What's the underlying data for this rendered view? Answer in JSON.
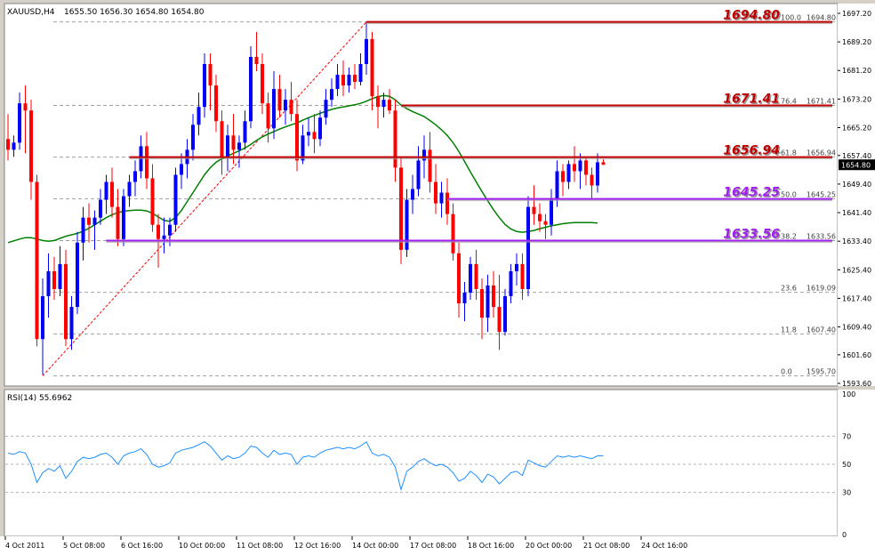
{
  "chart_data": [
    {
      "type": "candlestick",
      "symbol_label": "XAUUSD,H4",
      "ohlc_label": "1655.50 1656.30 1654.80 1654.80",
      "last_price": "1654.80",
      "ylim": [
        1593.6,
        1697.2
      ],
      "y_ticks": [
        "1697.20",
        "1689.20",
        "1681.20",
        "1673.20",
        "1665.20",
        "1657.40",
        "1649.40",
        "1641.40",
        "1633.40",
        "1625.40",
        "1617.40",
        "1609.40",
        "1601.60",
        "1593.60"
      ],
      "x_ticks": [
        {
          "label": "4 Oct 2011",
          "bar": 0
        },
        {
          "label": "5 Oct 08:00",
          "bar": 10
        },
        {
          "label": "6 Oct 16:00",
          "bar": 20
        },
        {
          "label": "10 Oct 00:00",
          "bar": 30
        },
        {
          "label": "11 Oct 08:00",
          "bar": 40
        },
        {
          "label": "12 Oct 16:00",
          "bar": 50
        },
        {
          "label": "14 Oct 00:00",
          "bar": 60
        },
        {
          "label": "17 Oct 08:00",
          "bar": 70
        },
        {
          "label": "18 Oct 16:00",
          "bar": 80
        },
        {
          "label": "20 Oct 00:00",
          "bar": 90
        },
        {
          "label": "21 Oct 08:00",
          "bar": 100
        },
        {
          "label": "24 Oct 16:00",
          "bar": 110
        }
      ],
      "candles": [
        {
          "o": 1662.0,
          "h": 1669.0,
          "l": 1656.0,
          "c": 1659.0
        },
        {
          "o": 1659.0,
          "h": 1663.0,
          "l": 1657.0,
          "c": 1661.0
        },
        {
          "o": 1661.0,
          "h": 1675.0,
          "l": 1659.0,
          "c": 1672.0
        },
        {
          "o": 1672.0,
          "h": 1677.0,
          "l": 1658.0,
          "c": 1670.0
        },
        {
          "o": 1670.0,
          "h": 1673.0,
          "l": 1645.0,
          "c": 1650.0
        },
        {
          "o": 1650.0,
          "h": 1652.0,
          "l": 1604.0,
          "c": 1606.0
        },
        {
          "o": 1606.0,
          "h": 1623.0,
          "l": 1596.0,
          "c": 1618.0
        },
        {
          "o": 1618.0,
          "h": 1630.0,
          "l": 1612.0,
          "c": 1625.0
        },
        {
          "o": 1625.0,
          "h": 1629.0,
          "l": 1617.0,
          "c": 1620.0
        },
        {
          "o": 1620.0,
          "h": 1632.0,
          "l": 1618.0,
          "c": 1627.0
        },
        {
          "o": 1627.0,
          "h": 1631.0,
          "l": 1604.0,
          "c": 1606.0
        },
        {
          "o": 1606.0,
          "h": 1618.0,
          "l": 1603.0,
          "c": 1615.0
        },
        {
          "o": 1615.0,
          "h": 1636.0,
          "l": 1613.0,
          "c": 1633.0
        },
        {
          "o": 1633.0,
          "h": 1643.0,
          "l": 1628.0,
          "c": 1640.0
        },
        {
          "o": 1640.0,
          "h": 1644.0,
          "l": 1633.0,
          "c": 1638.0
        },
        {
          "o": 1638.0,
          "h": 1642.0,
          "l": 1631.0,
          "c": 1640.0
        },
        {
          "o": 1640.0,
          "h": 1648.0,
          "l": 1638.0,
          "c": 1645.0
        },
        {
          "o": 1645.0,
          "h": 1652.0,
          "l": 1641.0,
          "c": 1650.0
        },
        {
          "o": 1650.0,
          "h": 1654.0,
          "l": 1640.0,
          "c": 1643.0
        },
        {
          "o": 1643.0,
          "h": 1648.0,
          "l": 1632.0,
          "c": 1634.0
        },
        {
          "o": 1634.0,
          "h": 1648.0,
          "l": 1632.0,
          "c": 1646.0
        },
        {
          "o": 1646.0,
          "h": 1652.0,
          "l": 1643.0,
          "c": 1650.0
        },
        {
          "o": 1650.0,
          "h": 1656.0,
          "l": 1646.0,
          "c": 1653.0
        },
        {
          "o": 1653.0,
          "h": 1663.0,
          "l": 1651.0,
          "c": 1660.0
        },
        {
          "o": 1660.0,
          "h": 1664.0,
          "l": 1648.0,
          "c": 1651.0
        },
        {
          "o": 1651.0,
          "h": 1655.0,
          "l": 1636.0,
          "c": 1638.0
        },
        {
          "o": 1638.0,
          "h": 1641.0,
          "l": 1626.0,
          "c": 1634.0
        },
        {
          "o": 1634.0,
          "h": 1640.0,
          "l": 1630.0,
          "c": 1635.0
        },
        {
          "o": 1635.0,
          "h": 1640.0,
          "l": 1632.0,
          "c": 1638.0
        },
        {
          "o": 1638.0,
          "h": 1654.0,
          "l": 1636.0,
          "c": 1652.0
        },
        {
          "o": 1652.0,
          "h": 1658.0,
          "l": 1648.0,
          "c": 1655.0
        },
        {
          "o": 1655.0,
          "h": 1662.0,
          "l": 1651.0,
          "c": 1659.0
        },
        {
          "o": 1659.0,
          "h": 1669.0,
          "l": 1656.0,
          "c": 1666.0
        },
        {
          "o": 1666.0,
          "h": 1675.0,
          "l": 1663.0,
          "c": 1671.0
        },
        {
          "o": 1671.0,
          "h": 1686.0,
          "l": 1668.0,
          "c": 1683.0
        },
        {
          "o": 1683.0,
          "h": 1686.0,
          "l": 1670.0,
          "c": 1677.0
        },
        {
          "o": 1677.0,
          "h": 1680.0,
          "l": 1664.0,
          "c": 1667.0
        },
        {
          "o": 1667.0,
          "h": 1670.0,
          "l": 1652.0,
          "c": 1657.0
        },
        {
          "o": 1657.0,
          "h": 1666.0,
          "l": 1653.0,
          "c": 1663.0
        },
        {
          "o": 1663.0,
          "h": 1669.0,
          "l": 1655.0,
          "c": 1659.0
        },
        {
          "o": 1659.0,
          "h": 1663.0,
          "l": 1654.0,
          "c": 1661.0
        },
        {
          "o": 1661.0,
          "h": 1670.0,
          "l": 1659.0,
          "c": 1667.0
        },
        {
          "o": 1667.0,
          "h": 1688.0,
          "l": 1665.0,
          "c": 1685.0
        },
        {
          "o": 1685.0,
          "h": 1692.0,
          "l": 1681.0,
          "c": 1683.0
        },
        {
          "o": 1683.0,
          "h": 1686.0,
          "l": 1669.0,
          "c": 1672.0
        },
        {
          "o": 1672.0,
          "h": 1675.0,
          "l": 1661.0,
          "c": 1665.0
        },
        {
          "o": 1665.0,
          "h": 1681.0,
          "l": 1662.0,
          "c": 1676.0
        },
        {
          "o": 1676.0,
          "h": 1680.0,
          "l": 1668.0,
          "c": 1670.0
        },
        {
          "o": 1670.0,
          "h": 1676.0,
          "l": 1666.0,
          "c": 1673.0
        },
        {
          "o": 1673.0,
          "h": 1678.0,
          "l": 1667.0,
          "c": 1669.0
        },
        {
          "o": 1669.0,
          "h": 1673.0,
          "l": 1653.0,
          "c": 1656.0
        },
        {
          "o": 1656.0,
          "h": 1666.0,
          "l": 1655.0,
          "c": 1663.0
        },
        {
          "o": 1663.0,
          "h": 1668.0,
          "l": 1660.0,
          "c": 1664.0
        },
        {
          "o": 1664.0,
          "h": 1669.0,
          "l": 1658.0,
          "c": 1662.0
        },
        {
          "o": 1662.0,
          "h": 1670.0,
          "l": 1660.0,
          "c": 1668.0
        },
        {
          "o": 1668.0,
          "h": 1676.0,
          "l": 1666.0,
          "c": 1673.0
        },
        {
          "o": 1673.0,
          "h": 1679.0,
          "l": 1671.0,
          "c": 1676.0
        },
        {
          "o": 1676.0,
          "h": 1683.0,
          "l": 1674.0,
          "c": 1680.0
        },
        {
          "o": 1680.0,
          "h": 1684.0,
          "l": 1674.0,
          "c": 1677.0
        },
        {
          "o": 1677.0,
          "h": 1682.0,
          "l": 1675.0,
          "c": 1680.0
        },
        {
          "o": 1680.0,
          "h": 1683.0,
          "l": 1676.0,
          "c": 1678.0
        },
        {
          "o": 1678.0,
          "h": 1686.0,
          "l": 1677.0,
          "c": 1683.0
        },
        {
          "o": 1683.0,
          "h": 1694.8,
          "l": 1680.0,
          "c": 1690.0
        },
        {
          "o": 1690.0,
          "h": 1692.0,
          "l": 1670.0,
          "c": 1674.0
        },
        {
          "o": 1674.0,
          "h": 1677.0,
          "l": 1665.0,
          "c": 1671.0
        },
        {
          "o": 1671.0,
          "h": 1675.0,
          "l": 1668.0,
          "c": 1673.0
        },
        {
          "o": 1673.0,
          "h": 1676.0,
          "l": 1669.0,
          "c": 1670.0
        },
        {
          "o": 1670.0,
          "h": 1673.0,
          "l": 1650.0,
          "c": 1654.0
        },
        {
          "o": 1654.0,
          "h": 1657.0,
          "l": 1627.0,
          "c": 1631.0
        },
        {
          "o": 1631.0,
          "h": 1648.0,
          "l": 1629.0,
          "c": 1645.0
        },
        {
          "o": 1645.0,
          "h": 1652.0,
          "l": 1641.0,
          "c": 1648.0
        },
        {
          "o": 1648.0,
          "h": 1660.0,
          "l": 1646.0,
          "c": 1656.0
        },
        {
          "o": 1656.0,
          "h": 1663.0,
          "l": 1651.0,
          "c": 1659.0
        },
        {
          "o": 1659.0,
          "h": 1664.0,
          "l": 1647.0,
          "c": 1650.0
        },
        {
          "o": 1650.0,
          "h": 1655.0,
          "l": 1641.0,
          "c": 1644.0
        },
        {
          "o": 1644.0,
          "h": 1650.0,
          "l": 1640.0,
          "c": 1647.0
        },
        {
          "o": 1647.0,
          "h": 1651.0,
          "l": 1638.0,
          "c": 1641.0
        },
        {
          "o": 1641.0,
          "h": 1644.0,
          "l": 1628.0,
          "c": 1630.0
        },
        {
          "o": 1630.0,
          "h": 1633.0,
          "l": 1612.0,
          "c": 1616.0
        },
        {
          "o": 1616.0,
          "h": 1622.0,
          "l": 1611.0,
          "c": 1619.0
        },
        {
          "o": 1619.0,
          "h": 1629.0,
          "l": 1617.0,
          "c": 1627.0
        },
        {
          "o": 1627.0,
          "h": 1631.0,
          "l": 1617.0,
          "c": 1620.0
        },
        {
          "o": 1620.0,
          "h": 1623.0,
          "l": 1606.0,
          "c": 1612.0
        },
        {
          "o": 1612.0,
          "h": 1624.0,
          "l": 1608.0,
          "c": 1621.0
        },
        {
          "o": 1621.0,
          "h": 1625.0,
          "l": 1612.0,
          "c": 1615.0
        },
        {
          "o": 1615.0,
          "h": 1624.0,
          "l": 1603.0,
          "c": 1608.0
        },
        {
          "o": 1608.0,
          "h": 1620.0,
          "l": 1607.0,
          "c": 1618.0
        },
        {
          "o": 1618.0,
          "h": 1627.0,
          "l": 1616.0,
          "c": 1625.0
        },
        {
          "o": 1625.0,
          "h": 1630.0,
          "l": 1621.0,
          "c": 1627.0
        },
        {
          "o": 1627.0,
          "h": 1630.0,
          "l": 1617.0,
          "c": 1620.0
        },
        {
          "o": 1620.0,
          "h": 1646.0,
          "l": 1618.0,
          "c": 1643.0
        },
        {
          "o": 1643.0,
          "h": 1649.0,
          "l": 1638.0,
          "c": 1641.0
        },
        {
          "o": 1641.0,
          "h": 1644.0,
          "l": 1636.0,
          "c": 1639.0
        },
        {
          "o": 1639.0,
          "h": 1641.0,
          "l": 1634.0,
          "c": 1638.0
        },
        {
          "o": 1638.0,
          "h": 1648.0,
          "l": 1635.0,
          "c": 1645.0
        },
        {
          "o": 1645.0,
          "h": 1656.0,
          "l": 1643.0,
          "c": 1653.0
        },
        {
          "o": 1653.0,
          "h": 1655.0,
          "l": 1646.0,
          "c": 1650.0
        },
        {
          "o": 1650.0,
          "h": 1656.0,
          "l": 1648.0,
          "c": 1655.0
        },
        {
          "o": 1655.0,
          "h": 1660.0,
          "l": 1650.0,
          "c": 1653.0
        },
        {
          "o": 1653.0,
          "h": 1658.0,
          "l": 1648.0,
          "c": 1656.0
        },
        {
          "o": 1656.0,
          "h": 1657.0,
          "l": 1649.0,
          "c": 1652.0
        },
        {
          "o": 1652.0,
          "h": 1654.0,
          "l": 1645.0,
          "c": 1649.0
        },
        {
          "o": 1649.0,
          "h": 1658.0,
          "l": 1647.0,
          "c": 1655.5
        },
        {
          "o": 1655.5,
          "h": 1656.3,
          "l": 1654.8,
          "c": 1654.8
        }
      ],
      "moving_average": [
        1633,
        1633.5,
        1634,
        1634.4,
        1634.4,
        1634,
        1633.6,
        1633.4,
        1633.6,
        1634.2,
        1634.8,
        1635.2,
        1635.6,
        1636.2,
        1637,
        1638,
        1639,
        1640,
        1640.8,
        1641.4,
        1641.8,
        1642,
        1642.1,
        1642.1,
        1641.9,
        1641.2,
        1640.2,
        1639.2,
        1639,
        1640,
        1642,
        1644.5,
        1647,
        1649.5,
        1652,
        1654,
        1655.5,
        1656.5,
        1657.3,
        1658,
        1658.7,
        1659.5,
        1660.5,
        1661.6,
        1662.6,
        1663.4,
        1664.1,
        1664.8,
        1665.4,
        1666,
        1666.5,
        1667.3,
        1668,
        1668.6,
        1669.2,
        1669.8,
        1670.3,
        1670.7,
        1671,
        1671.3,
        1671.6,
        1672,
        1672.6,
        1673.3,
        1673.9,
        1674.2,
        1674,
        1673,
        1671.5,
        1670.5,
        1669.7,
        1669,
        1668.3,
        1667.2,
        1666,
        1664.6,
        1663,
        1661,
        1658.5,
        1655.7,
        1652.8,
        1650,
        1647.3,
        1644.7,
        1642.2,
        1640,
        1638.1,
        1636.8,
        1636.1,
        1635.9,
        1636.1,
        1636.4,
        1636.9,
        1637.3,
        1637.7,
        1638,
        1638.3,
        1638.5,
        1638.6,
        1638.6,
        1638.6,
        1638.6,
        1638.5
      ],
      "fibonacci": {
        "levels": [
          {
            "ratio": "100.0",
            "price": "1694.80",
            "value": 1694.8
          },
          {
            "ratio": "76.4",
            "price": "1671.41",
            "value": 1671.41
          },
          {
            "ratio": "61.8",
            "price": "1656.94",
            "value": 1656.94
          },
          {
            "ratio": "50.0",
            "price": "1645.25",
            "value": 1645.25
          },
          {
            "ratio": "38.2",
            "price": "1633.56",
            "value": 1633.56
          },
          {
            "ratio": "23.6",
            "price": "1619.09",
            "value": 1619.09
          },
          {
            "ratio": "11.8",
            "price": "1607.40",
            "value": 1607.4
          },
          {
            "ratio": "0.0",
            "price": "1595.70",
            "value": 1595.7
          }
        ],
        "trend_line": {
          "from_bar": 6,
          "from_value": 1595.7,
          "to_bar": 62,
          "to_value": 1694.8
        }
      },
      "horizontal_lines": [
        {
          "label": "1694.80",
          "value": 1694.8,
          "color": "#c00000",
          "from_bar": 62
        },
        {
          "label": "1671.41",
          "value": 1671.41,
          "color": "#c00000",
          "from_bar": 68
        },
        {
          "label": "1656.94",
          "value": 1656.94,
          "color": "#c00000",
          "from_bar": 21
        },
        {
          "label": "1645.25",
          "value": 1645.25,
          "color": "#a020f0",
          "from_bar": 76
        },
        {
          "label": "1633.56",
          "value": 1633.56,
          "color": "#a020f0",
          "from_bar": 17
        }
      ],
      "colors": {
        "background": "#ffffff",
        "bull": "#0000ff",
        "bear": "#ff0000",
        "moving_average": "#008000",
        "rsi": "#1e90ff",
        "fib": "#a0a0a0",
        "trend_line": "#ff0000",
        "text": "#000000"
      }
    },
    {
      "type": "line",
      "label": "RSI(14) 55.6962",
      "ylim": [
        0,
        100
      ],
      "y_ticks": [
        "100",
        "70",
        "50",
        "30",
        "0"
      ],
      "levels": [
        70,
        50,
        30
      ],
      "values": [
        58,
        57,
        59,
        58,
        50,
        37,
        44,
        47,
        45,
        49,
        40,
        45,
        52,
        55,
        54,
        55,
        57,
        58,
        55,
        50,
        56,
        58,
        59,
        61,
        57,
        50,
        48,
        49,
        51,
        58,
        60,
        61,
        62,
        64,
        66,
        63,
        58,
        53,
        56,
        54,
        55,
        58,
        63,
        62,
        58,
        55,
        60,
        57,
        58,
        57,
        50,
        55,
        56,
        55,
        58,
        60,
        61,
        62,
        61,
        62,
        61,
        63,
        66,
        58,
        56,
        57,
        55,
        48,
        32,
        45,
        48,
        52,
        54,
        51,
        49,
        50,
        48,
        44,
        38,
        40,
        45,
        42,
        37,
        43,
        41,
        36,
        40,
        44,
        45,
        42,
        53,
        51,
        49,
        48,
        52,
        56,
        55,
        56,
        55,
        56,
        55,
        54,
        56,
        56
      ]
    }
  ]
}
